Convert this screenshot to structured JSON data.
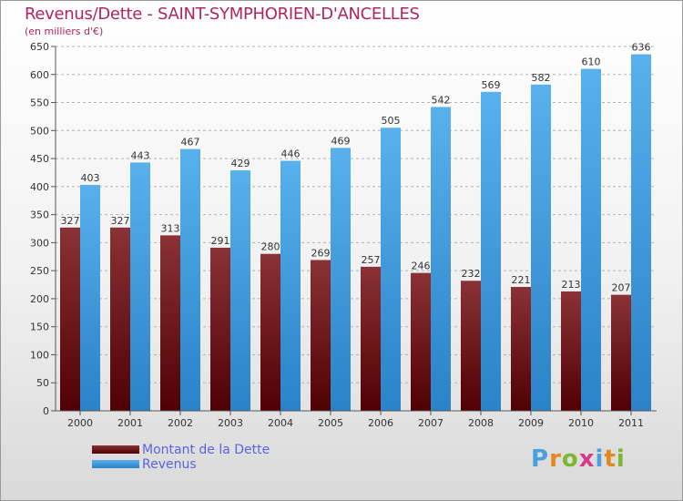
{
  "title": "Revenus/Dette - SAINT-SYMPHORIEN-D'ANCELLES",
  "subtitle": "(en milliers d'€)",
  "logo_text": "Proxiti",
  "colors": {
    "dette": "#6e1012",
    "revenus": "#4aa0de",
    "title": "#b2245f",
    "legend_text": "#5a63e0"
  },
  "chart_data": {
    "type": "bar",
    "categories": [
      "2000",
      "2001",
      "2002",
      "2003",
      "2004",
      "2005",
      "2006",
      "2007",
      "2008",
      "2009",
      "2010",
      "2011"
    ],
    "series": [
      {
        "name": "Montant de la Dette",
        "values": [
          327,
          327,
          313,
          291,
          280,
          269,
          257,
          246,
          232,
          221,
          213,
          207
        ]
      },
      {
        "name": "Revenus",
        "values": [
          403,
          443,
          467,
          429,
          446,
          469,
          505,
          542,
          569,
          582,
          610,
          636
        ]
      }
    ],
    "ylim": [
      0,
      650
    ],
    "yticks": [
      0,
      50,
      100,
      150,
      200,
      250,
      300,
      350,
      400,
      450,
      500,
      550,
      600,
      650
    ],
    "grid": true,
    "legend": "bottom-left"
  }
}
